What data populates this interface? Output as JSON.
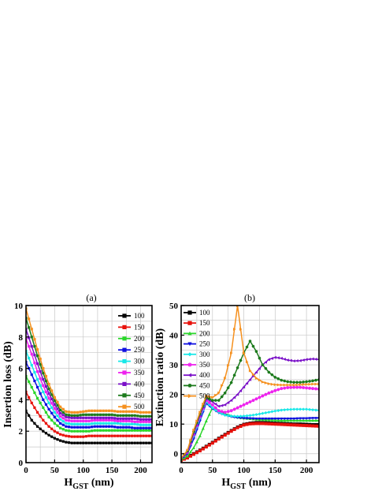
{
  "chart_data": [
    {
      "type": "line",
      "panel_label": "(a)",
      "xlabel_main": "H",
      "xlabel_sub": "GST",
      "xlabel_unit": " (nm)",
      "ylabel": "Insertion loss (dB)",
      "xlim": [
        0,
        220
      ],
      "ylim": [
        0,
        10
      ],
      "xticks": [
        0,
        50,
        100,
        150,
        200
      ],
      "yticks": [
        0,
        2,
        4,
        6,
        8,
        10
      ],
      "grid": true,
      "legend_position": "top-right",
      "x": [
        0,
        10,
        20,
        30,
        40,
        50,
        60,
        70,
        80,
        90,
        100,
        110,
        120,
        130,
        140,
        150,
        160,
        170,
        180,
        190,
        200,
        210,
        220
      ],
      "series": [
        {
          "name": "100",
          "color": "#000000",
          "values": [
            3.3,
            2.7,
            2.3,
            2.0,
            1.75,
            1.55,
            1.4,
            1.3,
            1.25,
            1.25,
            1.25,
            1.25,
            1.25,
            1.25,
            1.25,
            1.25,
            1.25,
            1.25,
            1.25,
            1.25,
            1.25,
            1.25,
            1.25
          ]
        },
        {
          "name": "150",
          "color": "#e8120c",
          "values": [
            4.5,
            3.8,
            3.2,
            2.7,
            2.3,
            2.0,
            1.8,
            1.7,
            1.65,
            1.65,
            1.65,
            1.7,
            1.7,
            1.7,
            1.7,
            1.7,
            1.7,
            1.7,
            1.7,
            1.7,
            1.7,
            1.7,
            1.7
          ]
        },
        {
          "name": "200",
          "color": "#2bd62b",
          "values": [
            5.5,
            4.8,
            4.1,
            3.5,
            2.9,
            2.5,
            2.2,
            2.05,
            2.0,
            2.0,
            2.0,
            2.0,
            2.05,
            2.05,
            2.05,
            2.05,
            2.05,
            2.05,
            2.05,
            2.05,
            2.05,
            2.05,
            2.05
          ]
        },
        {
          "name": "250",
          "color": "#1010e0",
          "values": [
            6.4,
            5.6,
            4.8,
            4.0,
            3.4,
            2.9,
            2.5,
            2.3,
            2.25,
            2.25,
            2.25,
            2.25,
            2.3,
            2.3,
            2.3,
            2.3,
            2.25,
            2.25,
            2.25,
            2.2,
            2.2,
            2.2,
            2.2
          ]
        },
        {
          "name": "300",
          "color": "#18e8e8",
          "values": [
            7.1,
            6.2,
            5.3,
            4.5,
            3.8,
            3.2,
            2.75,
            2.5,
            2.45,
            2.45,
            2.45,
            2.45,
            2.5,
            2.5,
            2.5,
            2.5,
            2.5,
            2.45,
            2.45,
            2.45,
            2.4,
            2.4,
            2.4
          ]
        },
        {
          "name": "350",
          "color": "#ee22ee",
          "values": [
            7.9,
            6.9,
            5.8,
            4.9,
            4.1,
            3.45,
            2.95,
            2.7,
            2.65,
            2.65,
            2.65,
            2.65,
            2.7,
            2.7,
            2.7,
            2.7,
            2.65,
            2.65,
            2.65,
            2.6,
            2.6,
            2.6,
            2.6
          ]
        },
        {
          "name": "400",
          "color": "#7a10c8",
          "values": [
            8.5,
            7.4,
            6.3,
            5.3,
            4.4,
            3.7,
            3.15,
            2.9,
            2.85,
            2.85,
            2.85,
            2.85,
            2.85,
            2.85,
            2.85,
            2.85,
            2.8,
            2.8,
            2.8,
            2.8,
            2.75,
            2.75,
            2.75
          ]
        },
        {
          "name": "450",
          "color": "#1c7a1c",
          "values": [
            9.2,
            8.0,
            6.8,
            5.7,
            4.7,
            3.95,
            3.35,
            3.05,
            3.0,
            3.0,
            3.05,
            3.05,
            3.05,
            3.05,
            3.05,
            3.05,
            3.0,
            3.0,
            3.0,
            3.0,
            2.95,
            2.95,
            2.95
          ]
        },
        {
          "name": "500",
          "color": "#f5901e",
          "values": [
            9.8,
            8.5,
            7.2,
            6.0,
            5.0,
            4.15,
            3.55,
            3.25,
            3.2,
            3.2,
            3.25,
            3.3,
            3.3,
            3.3,
            3.3,
            3.3,
            3.25,
            3.25,
            3.25,
            3.25,
            3.2,
            3.2,
            3.2
          ]
        }
      ]
    },
    {
      "type": "line",
      "panel_label": "(b)",
      "xlabel_main": "H",
      "xlabel_sub": "GST",
      "xlabel_unit": " (nm)",
      "ylabel": "Extinction ratio (dB)",
      "xlim": [
        0,
        220
      ],
      "ylim": [
        -3,
        50
      ],
      "xticks": [
        0,
        50,
        100,
        150,
        200
      ],
      "yticks": [
        0,
        10,
        20,
        30,
        40,
        50
      ],
      "grid": true,
      "legend_position": "top-left",
      "x": [
        0,
        10,
        20,
        30,
        40,
        50,
        60,
        70,
        80,
        90,
        100,
        110,
        120,
        130,
        140,
        150,
        160,
        170,
        180,
        190,
        200,
        210,
        220
      ],
      "series": [
        {
          "name": "100",
          "color": "#000000",
          "values": [
            -2.0,
            -1.2,
            0.0,
            1.2,
            2.5,
            3.8,
            5.2,
            6.5,
            7.8,
            9.0,
            9.9,
            10.3,
            10.5,
            10.5,
            10.4,
            10.3,
            10.2,
            10.1,
            10.0,
            10.0,
            9.9,
            9.8,
            9.8
          ]
        },
        {
          "name": "150",
          "color": "#e8120c",
          "values": [
            -2.2,
            -1.4,
            -0.2,
            1.0,
            2.3,
            3.6,
            5.0,
            6.3,
            7.6,
            8.8,
            9.7,
            10.1,
            10.2,
            10.2,
            10.1,
            10.0,
            9.9,
            9.8,
            9.7,
            9.6,
            9.5,
            9.4,
            9.3
          ]
        },
        {
          "name": "200",
          "color": "#2bd62b",
          "values": [
            -2.0,
            -0.8,
            2.0,
            6.0,
            11.0,
            15.5,
            14.5,
            13.5,
            12.8,
            12.3,
            12.0,
            11.8,
            11.6,
            11.5,
            11.4,
            11.3,
            11.2,
            11.2,
            11.2,
            11.2,
            11.2,
            11.2,
            11.2
          ]
        },
        {
          "name": "250",
          "color": "#1010e0",
          "values": [
            -1.8,
            0.0,
            5.0,
            11.0,
            17.0,
            15.2,
            13.8,
            13.0,
            12.5,
            12.2,
            12.0,
            11.9,
            11.8,
            11.8,
            11.8,
            11.8,
            11.8,
            11.8,
            11.8,
            11.9,
            11.9,
            12.0,
            12.0
          ]
        },
        {
          "name": "300",
          "color": "#18e8e8",
          "values": [
            -1.5,
            0.5,
            6.0,
            12.0,
            17.5,
            15.5,
            14.0,
            13.0,
            12.7,
            12.6,
            12.7,
            12.9,
            13.2,
            13.6,
            14.0,
            14.4,
            14.7,
            14.9,
            15.0,
            15.0,
            15.0,
            14.8,
            14.6
          ]
        },
        {
          "name": "350",
          "color": "#ee22ee",
          "values": [
            -1.5,
            0.5,
            6.5,
            12.5,
            18.0,
            16.5,
            14.5,
            14.0,
            14.5,
            15.5,
            16.5,
            17.5,
            18.5,
            19.5,
            20.5,
            21.3,
            22.0,
            22.3,
            22.4,
            22.4,
            22.2,
            22.0,
            21.8
          ]
        },
        {
          "name": "400",
          "color": "#7a10c8",
          "values": [
            -1.5,
            0.8,
            7.0,
            13.0,
            18.5,
            17.5,
            16.0,
            16.5,
            18.0,
            20.0,
            22.5,
            25.0,
            27.5,
            30.0,
            31.8,
            32.5,
            32.2,
            31.6,
            31.3,
            31.4,
            31.8,
            32.0,
            31.8
          ]
        },
        {
          "name": "450",
          "color": "#1c7a1c",
          "values": [
            -1.5,
            1.0,
            7.5,
            13.5,
            19.0,
            18.0,
            18.0,
            20.5,
            24.0,
            29.0,
            34.0,
            38.0,
            34.5,
            30.0,
            27.5,
            25.8,
            24.8,
            24.3,
            24.1,
            24.1,
            24.3,
            24.6,
            25.0
          ]
        },
        {
          "name": "500",
          "color": "#f5901e",
          "values": [
            -1.5,
            1.2,
            8.0,
            14.0,
            19.5,
            19.0,
            20.5,
            25.5,
            34.0,
            50.0,
            34.0,
            28.0,
            25.5,
            24.2,
            23.6,
            23.3,
            23.2,
            23.2,
            23.2,
            23.3,
            23.4,
            23.5,
            23.5
          ]
        }
      ]
    }
  ]
}
